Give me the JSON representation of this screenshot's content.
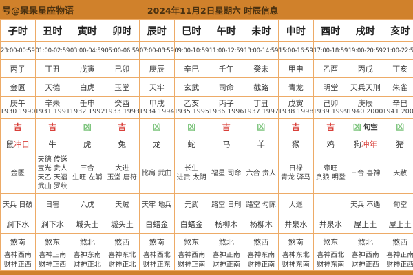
{
  "header": {
    "account": "号@呆呆星座物语",
    "title": "2024年11月2日星期六 时辰信息"
  },
  "colors": {
    "bar_orange": "#d0812b",
    "border_orange": "#edab67",
    "lucky_red": "#d9403a",
    "unlucky_green": "#7cc47c"
  },
  "columns": [
    {
      "hour": "子时",
      "time": "23:00-00:59",
      "ganzhi": "丙子",
      "star": "金匮",
      "chong_ganzhi": "庚午",
      "chong_years": "1930 1990",
      "luck": "吉",
      "luck_extra": "",
      "zodiac": "鼠",
      "zodiac_mark": "冲日",
      "jishen": [
        "金匮"
      ],
      "xiongshen": "天兵 日破",
      "nayin": "涧下水",
      "sha": "煞南",
      "xishen": "喜神西南",
      "caishen": "财神正西"
    },
    {
      "hour": "丑时",
      "time": "01:00-02:59",
      "ganzhi": "丁丑",
      "star": "天德",
      "chong_ganzhi": "辛未",
      "chong_years": "1931 1991",
      "luck": "吉",
      "luck_extra": "",
      "zodiac": "牛",
      "zodiac_mark": "",
      "jishen": [
        "天德 传送",
        "宝光 贵人",
        "天乙 天福",
        "武曲 罗纹"
      ],
      "xiongshen": "日害",
      "nayin": "涧下水",
      "sha": "煞东",
      "xishen": "喜神正南",
      "caishen": "财神正西"
    },
    {
      "hour": "寅时",
      "time": "03:00-04:59",
      "ganzhi": "戊寅",
      "star": "白虎",
      "chong_ganzhi": "壬申",
      "chong_years": "1932 1992",
      "luck": "凶",
      "luck_extra": "",
      "zodiac": "虎",
      "zodiac_mark": "",
      "jishen": [
        "三合",
        "生旺 左辅"
      ],
      "xiongshen": "六戊",
      "nayin": "城头土",
      "sha": "煞北",
      "xishen": "喜神东南",
      "caishen": "财神正北"
    },
    {
      "hour": "卯时",
      "time": "05:00-06:59",
      "ganzhi": "己卯",
      "star": "玉堂",
      "chong_ganzhi": "癸酉",
      "chong_years": "1933 1993",
      "luck": "吉",
      "luck_extra": "",
      "zodiac": "兔",
      "zodiac_mark": "",
      "jishen": [
        "大进",
        "玉堂 唐符"
      ],
      "xiongshen": "天贼",
      "nayin": "城头土",
      "sha": "煞西",
      "xishen": "喜神东北",
      "caishen": "财神正北"
    },
    {
      "hour": "辰时",
      "time": "07:00-08:59",
      "ganzhi": "庚辰",
      "star": "天牢",
      "chong_ganzhi": "甲戌",
      "chong_years": "1934 1994",
      "luck": "凶",
      "luck_extra": "",
      "zodiac": "龙",
      "zodiac_mark": "",
      "jishen": [
        "比肩 武曲"
      ],
      "xiongshen": "天牢 地兵",
      "nayin": "白蜡金",
      "sha": "煞南",
      "xishen": "喜神西北",
      "caishen": "财神正东"
    },
    {
      "hour": "巳时",
      "time": "09:00-10:59",
      "ganzhi": "辛巳",
      "star": "玄武",
      "chong_ganzhi": "乙亥",
      "chong_years": "1935 1995",
      "luck": "凶",
      "luck_extra": "",
      "zodiac": "蛇",
      "zodiac_mark": "",
      "jishen": [
        "长生",
        "进贵 太阴"
      ],
      "xiongshen": "元武",
      "nayin": "白蜡金",
      "sha": "煞东",
      "xishen": "喜神西南",
      "caishen": "财神正南"
    },
    {
      "hour": "午时",
      "time": "11:00-12:59",
      "ganzhi": "壬午",
      "star": "司命",
      "chong_ganzhi": "丙子",
      "chong_years": "1936 1996",
      "luck": "吉",
      "luck_extra": "",
      "zodiac": "马",
      "zodiac_mark": "",
      "jishen": [
        "福星 司命"
      ],
      "xiongshen": "路空 日刑",
      "nayin": "杨柳木",
      "sha": "煞北",
      "xishen": "喜神正南",
      "caishen": "财神正南"
    },
    {
      "hour": "未时",
      "time": "13:00-14:59",
      "ganzhi": "癸未",
      "star": "截路",
      "chong_ganzhi": "丁丑",
      "chong_years": "1937 1997",
      "luck": "凶",
      "luck_extra": "",
      "zodiac": "羊",
      "zodiac_mark": "",
      "jishen": [
        "六合 贵人"
      ],
      "xiongshen": "路空 勾陈",
      "nayin": "杨柳木",
      "sha": "煞西",
      "xishen": "喜神东南",
      "caishen": "财神正南"
    },
    {
      "hour": "申时",
      "time": "15:00-16:59",
      "ganzhi": "甲申",
      "star": "青龙",
      "chong_ganzhi": "戊寅",
      "chong_years": "1938 1998",
      "luck": "吉",
      "luck_extra": "",
      "zodiac": "猴",
      "zodiac_mark": "",
      "jishen": [
        "日禄",
        "青龙 驿马"
      ],
      "xiongshen": "大退",
      "nayin": "井泉水",
      "sha": "煞南",
      "xishen": "喜神东北",
      "caishen": "财神东南"
    },
    {
      "hour": "酉时",
      "time": "17:00-18:59",
      "ganzhi": "乙酉",
      "star": "明堂",
      "chong_ganzhi": "己卯",
      "chong_years": "1939 1999",
      "luck": "吉",
      "luck_extra": "",
      "zodiac": "鸡",
      "zodiac_mark": "",
      "jishen": [
        "帝旺",
        "贪狼 明堂"
      ],
      "xiongshen": "",
      "nayin": "井泉水",
      "sha": "煞东",
      "xishen": "喜神西北",
      "caishen": "财神东南"
    },
    {
      "hour": "戌时",
      "time": "19:00-20:59",
      "ganzhi": "丙戌",
      "star": "天兵天刑",
      "chong_ganzhi": "庚辰",
      "chong_years": "1940 2000",
      "luck": "凶",
      "luck_extra": "旬空",
      "zodiac": "狗",
      "zodiac_mark": "冲年",
      "jishen": [
        "三合 喜神"
      ],
      "xiongshen": "天兵 不遇",
      "nayin": "屋上土",
      "sha": "煞北",
      "xishen": "喜神西南",
      "caishen": "财神正西"
    },
    {
      "hour": "亥时",
      "time": "21:00-22:59",
      "ganzhi": "丁亥",
      "star": "朱雀",
      "chong_ganzhi": "辛巳",
      "chong_years": "1941 2001",
      "luck": "凶",
      "luck_extra": "",
      "zodiac": "猪",
      "zodiac_mark": "",
      "jishen": [
        "天赦"
      ],
      "xiongshen": "旬空",
      "nayin": "屋上土",
      "sha": "煞西",
      "xishen": "喜神正南",
      "caishen": "财神正西"
    }
  ]
}
